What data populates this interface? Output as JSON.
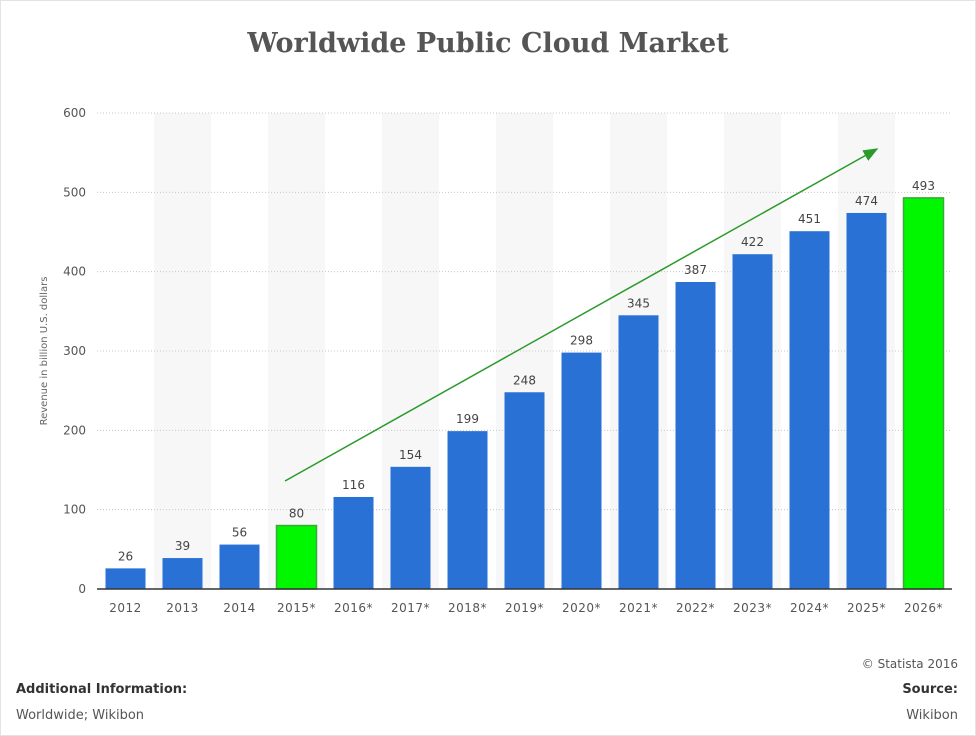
{
  "chart_data": {
    "type": "bar",
    "title": "Worldwide Public Cloud Market",
    "ylabel": "Revenue in billion U.S. dollars",
    "xlabel": "",
    "ylim": [
      0,
      600
    ],
    "yticks": [
      0,
      100,
      200,
      300,
      400,
      500,
      600
    ],
    "grid": true,
    "categories": [
      "2012",
      "2013",
      "2014",
      "2015*",
      "2016*",
      "2017*",
      "2018*",
      "2019*",
      "2020*",
      "2021*",
      "2022*",
      "2023*",
      "2024*",
      "2025*",
      "2026*"
    ],
    "values": [
      26,
      39,
      56,
      80,
      116,
      154,
      199,
      248,
      298,
      345,
      387,
      422,
      451,
      474,
      493
    ],
    "highlighted": [
      "2015*",
      "2026*"
    ],
    "colors": {
      "bar": "#2a71d6",
      "highlight": "#00f700",
      "arrow": "#2a9a2a",
      "stripe": "#f7f7f7"
    },
    "annotation": "upward green trend arrow from 2015* to 2025*"
  },
  "footer": {
    "copyright": "© Statista 2016",
    "additional_label": "Additional Information:",
    "additional_value": "Worldwide; Wikibon",
    "source_label": "Source:",
    "source_value": "Wikibon"
  }
}
